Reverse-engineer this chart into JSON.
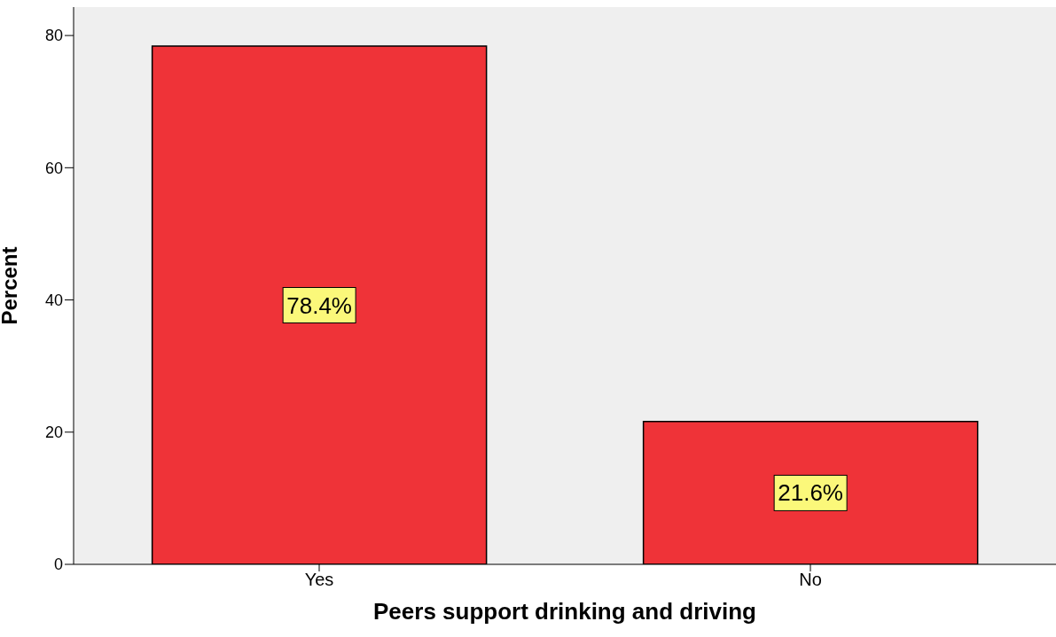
{
  "chart_data": {
    "type": "bar",
    "xlabel": "Peers support drinking and driving",
    "ylabel": "Percent",
    "categories": [
      "Yes",
      "No"
    ],
    "values": [
      78.4,
      21.6
    ],
    "color": "#ef3338",
    "value_labels": [
      "78.4%",
      "21.6%"
    ],
    "ylim": [
      0,
      84.3
    ],
    "yticks": [
      0,
      20,
      40,
      60,
      80
    ],
    "grid": false
  }
}
